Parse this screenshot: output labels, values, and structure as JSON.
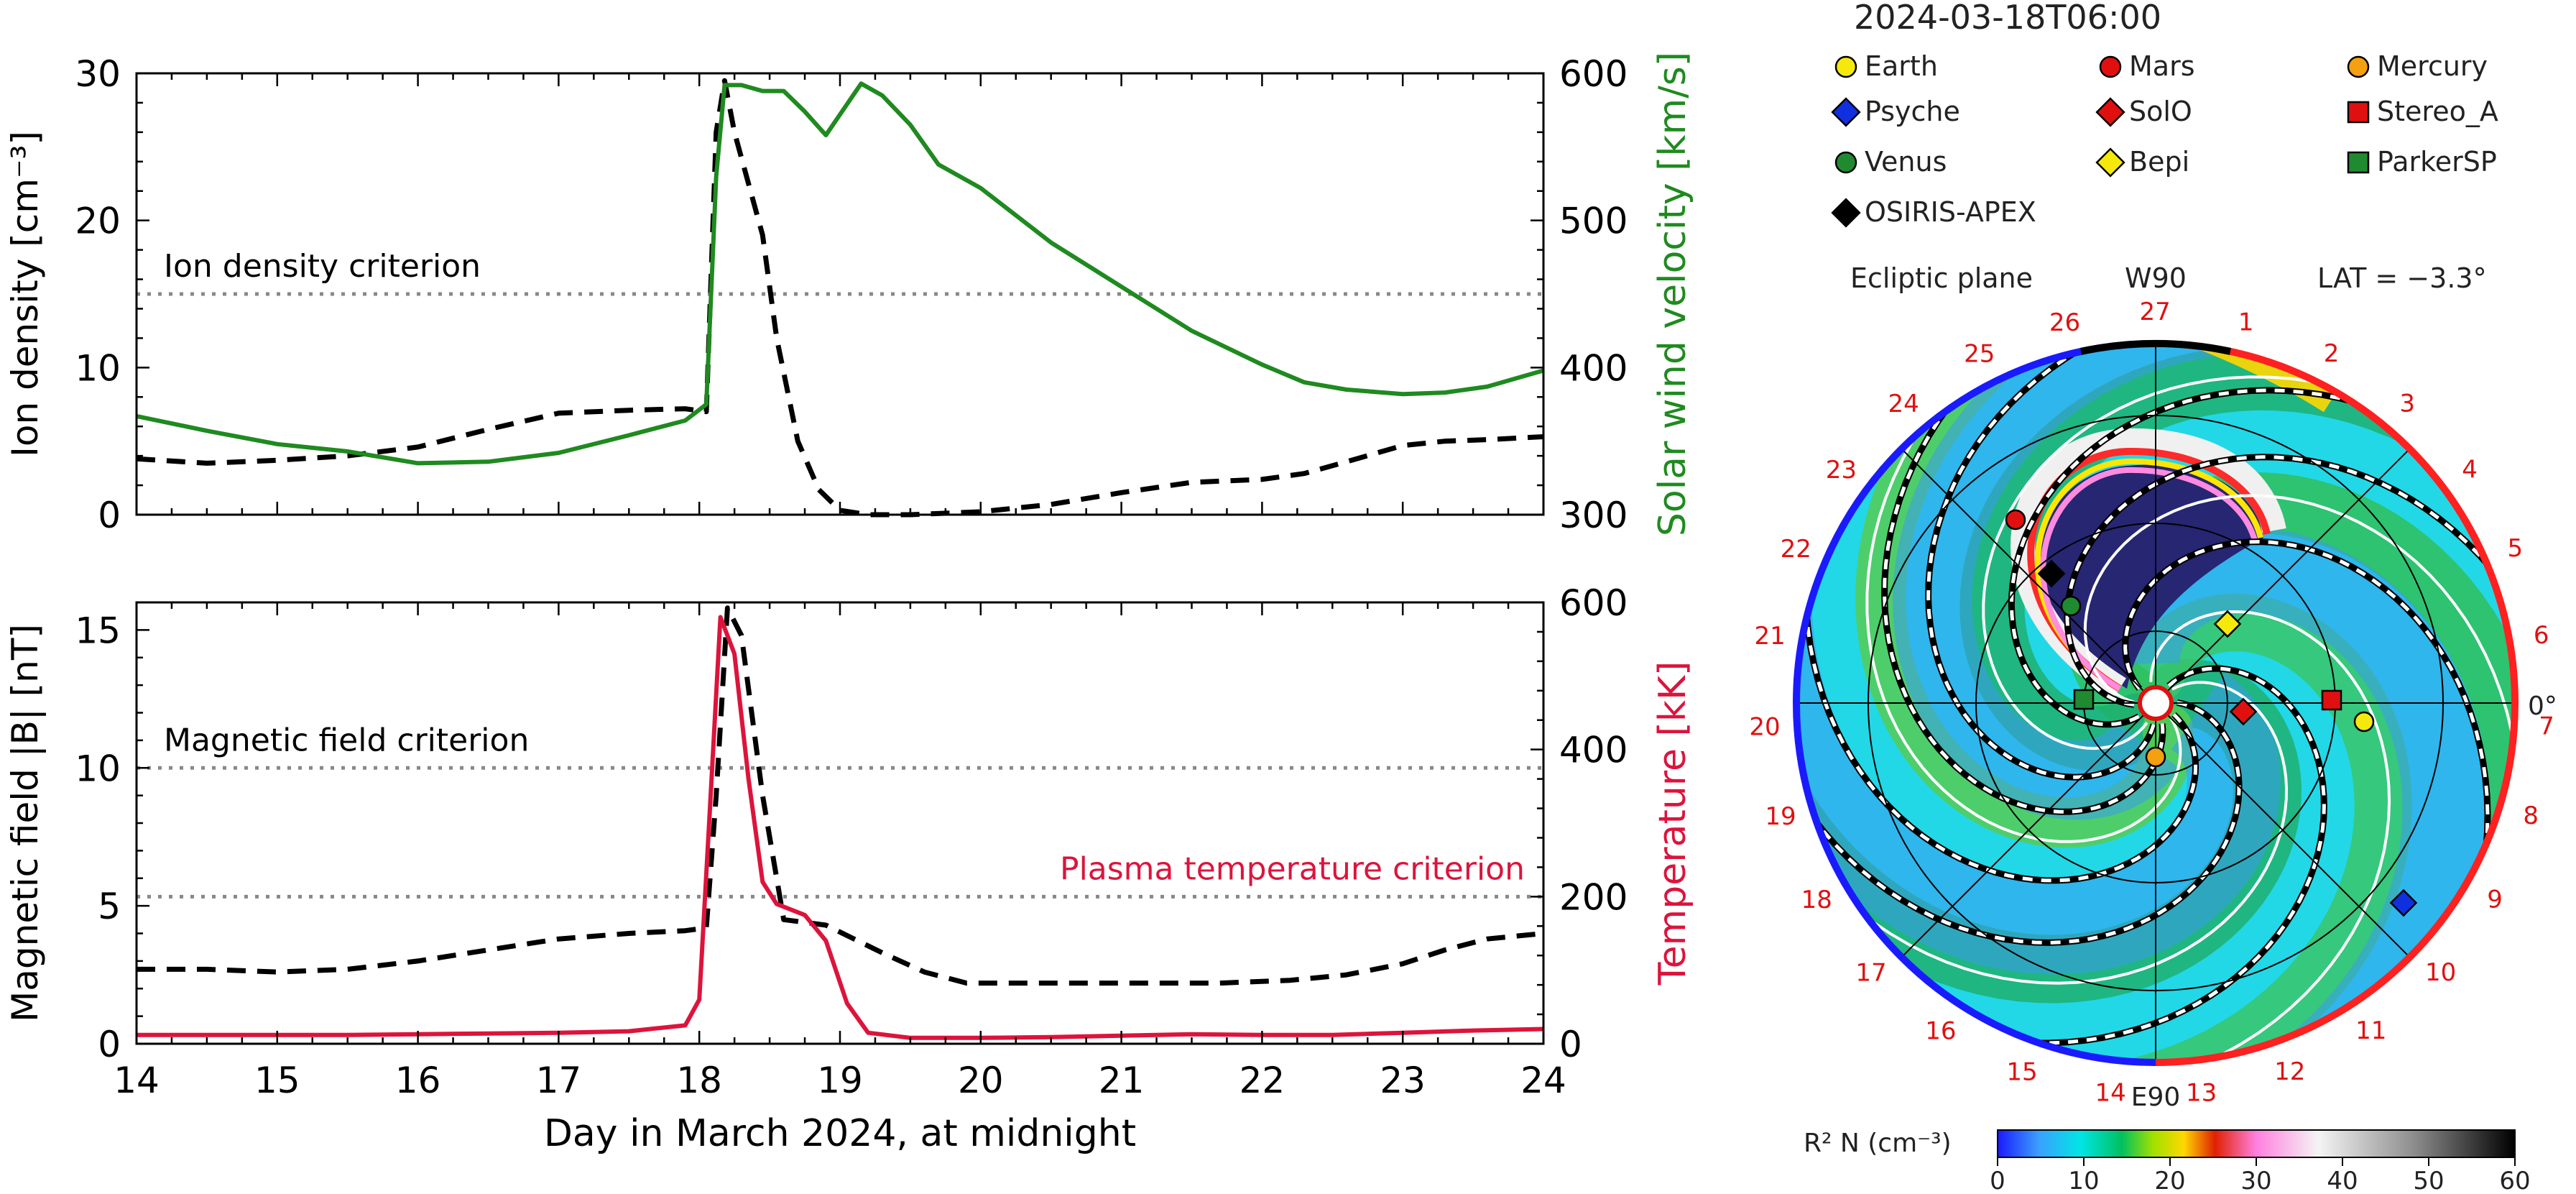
{
  "chart_data": [
    {
      "type": "line",
      "panel": "top",
      "ylabel_left": "Ion density [cm⁻³]",
      "ylabel_right": "Solar wind velocity [km/s]",
      "ylim_left": [
        0,
        30
      ],
      "ylim_right": [
        300,
        600
      ],
      "yticks_left": [
        "0",
        "10",
        "20",
        "30"
      ],
      "yticks_right": [
        "300",
        "400",
        "500",
        "600"
      ],
      "xlim": [
        14,
        24
      ],
      "grid": false,
      "criterion_label": "Ion density criterion",
      "criterion_value": 15,
      "series": [
        {
          "axis": "left",
          "color": "#000000",
          "style": "dashed",
          "x": [
            14,
            14.5,
            15,
            15.5,
            16,
            16.5,
            17,
            17.5,
            17.9,
            18.05,
            18.12,
            18.18,
            18.25,
            18.35,
            18.45,
            18.55,
            18.7,
            18.85,
            19.0,
            19.2,
            19.5,
            20,
            20.5,
            21,
            21.5,
            22,
            22.3,
            22.6,
            23,
            23.3,
            23.6,
            24
          ],
          "y": [
            3.8,
            3.5,
            3.7,
            4.0,
            4.6,
            5.8,
            6.9,
            7.1,
            7.2,
            7.0,
            26,
            29.5,
            26,
            22.5,
            19,
            12,
            5,
            1.7,
            0.3,
            0,
            0,
            0.2,
            0.7,
            1.5,
            2.2,
            2.4,
            2.8,
            3.6,
            4.7,
            5.0,
            5.1,
            5.3
          ]
        },
        {
          "axis": "right",
          "color": "#1f8a1f",
          "style": "solid",
          "x": [
            14,
            14.5,
            15,
            15.5,
            16,
            16.5,
            17,
            17.5,
            17.9,
            18.05,
            18.12,
            18.18,
            18.3,
            18.45,
            18.6,
            18.75,
            18.9,
            19.0,
            19.15,
            19.3,
            19.5,
            19.7,
            20,
            20.5,
            21,
            21.5,
            22,
            22.3,
            22.6,
            23,
            23.3,
            23.6,
            24
          ],
          "y": [
            367,
            357,
            348,
            343,
            335,
            336,
            342,
            354,
            364,
            375,
            530,
            592,
            592,
            588,
            588,
            574,
            558,
            572,
            593,
            585,
            565,
            538,
            522,
            485,
            455,
            425,
            402,
            390,
            385,
            382,
            383,
            387,
            398
          ]
        }
      ]
    },
    {
      "type": "line",
      "panel": "bottom",
      "ylabel_left": "Magnetic field |B| [nT]",
      "ylabel_right": "Temperature [kK]",
      "ylim_left": [
        0,
        16
      ],
      "ylim_right": [
        0,
        600
      ],
      "yticks_left": [
        "0",
        "5",
        "10",
        "15"
      ],
      "yticks_right": [
        "0",
        "200",
        "400",
        "600"
      ],
      "xlim": [
        14,
        24
      ],
      "xticks": [
        "14",
        "15",
        "16",
        "17",
        "18",
        "19",
        "20",
        "21",
        "22",
        "23",
        "24"
      ],
      "xlabel": "Day in March 2024, at midnight",
      "grid": false,
      "criterion1_label": "Magnetic field criterion",
      "criterion1_value": 10,
      "criterion2_label": "Plasma temperature criterion",
      "criterion2_value": 200,
      "series": [
        {
          "axis": "left",
          "color": "#000000",
          "style": "dashed",
          "x": [
            14,
            14.5,
            15,
            15.5,
            16,
            16.5,
            17,
            17.5,
            17.9,
            18.05,
            18.12,
            18.2,
            18.3,
            18.45,
            18.6,
            18.9,
            19.3,
            19.6,
            19.9,
            20.3,
            20.7,
            21.2,
            21.7,
            22.2,
            22.6,
            23,
            23.3,
            23.6,
            24
          ],
          "y": [
            2.7,
            2.7,
            2.6,
            2.7,
            3.0,
            3.4,
            3.8,
            4.0,
            4.1,
            4.2,
            9.0,
            15.8,
            14.8,
            9.0,
            4.5,
            4.3,
            3.3,
            2.6,
            2.2,
            2.2,
            2.2,
            2.2,
            2.2,
            2.3,
            2.5,
            2.9,
            3.4,
            3.8,
            4.0
          ]
        },
        {
          "axis": "right",
          "color": "#dc143c",
          "style": "solid",
          "x": [
            14,
            14.5,
            15,
            15.5,
            16,
            16.5,
            17,
            17.5,
            17.9,
            18.0,
            18.07,
            18.15,
            18.25,
            18.35,
            18.45,
            18.55,
            18.75,
            18.9,
            19.05,
            19.2,
            19.5,
            20,
            20.5,
            21,
            21.5,
            22,
            22.5,
            23,
            23.5,
            24
          ],
          "y": [
            12,
            12,
            12,
            12,
            13,
            14,
            15,
            17,
            25,
            60,
            300,
            580,
            530,
            360,
            220,
            190,
            175,
            140,
            55,
            15,
            8,
            8,
            9,
            11,
            13,
            12,
            12,
            15,
            18,
            20
          ]
        }
      ]
    },
    {
      "type": "heatmap",
      "panel": "enlil",
      "title": "2024-03-18T06:00",
      "plane_label": "Ecliptic plane",
      "w_label": "W90",
      "lat_label": "LAT = −3.3°",
      "e_label": "E90",
      "zero_label": "0°",
      "legend": [
        {
          "name": "Earth",
          "color": "#f5e90c",
          "shape": "circle"
        },
        {
          "name": "Mars",
          "color": "#e01010",
          "shape": "circle"
        },
        {
          "name": "Mercury",
          "color": "#f5a010",
          "shape": "circle"
        },
        {
          "name": "Psyche",
          "color": "#1030e0",
          "shape": "diamond"
        },
        {
          "name": "SolO",
          "color": "#e01010",
          "shape": "diamond"
        },
        {
          "name": "Stereo_A",
          "color": "#e01010",
          "shape": "square"
        },
        {
          "name": "Venus",
          "color": "#208a30",
          "shape": "circle"
        },
        {
          "name": "Bepi",
          "color": "#f5e90c",
          "shape": "diamond"
        },
        {
          "name": "ParkerSP",
          "color": "#208a30",
          "shape": "square"
        },
        {
          "name": "OSIRIS-APEX",
          "color": "#000000",
          "shape": "diamond"
        }
      ],
      "sector_numbers": [
        "1",
        "2",
        "3",
        "4",
        "5",
        "6",
        "7",
        "8",
        "9",
        "10",
        "11",
        "12",
        "13",
        "14",
        "15",
        "16",
        "17",
        "18",
        "19",
        "20",
        "21",
        "22",
        "23",
        "24",
        "25",
        "26",
        "27"
      ],
      "colorbar_label": "R² N (cm⁻³)",
      "colorbar_range": [
        0,
        60
      ],
      "colorbar_ticks": [
        "0",
        "10",
        "20",
        "30",
        "40",
        "50",
        "60"
      ]
    }
  ]
}
